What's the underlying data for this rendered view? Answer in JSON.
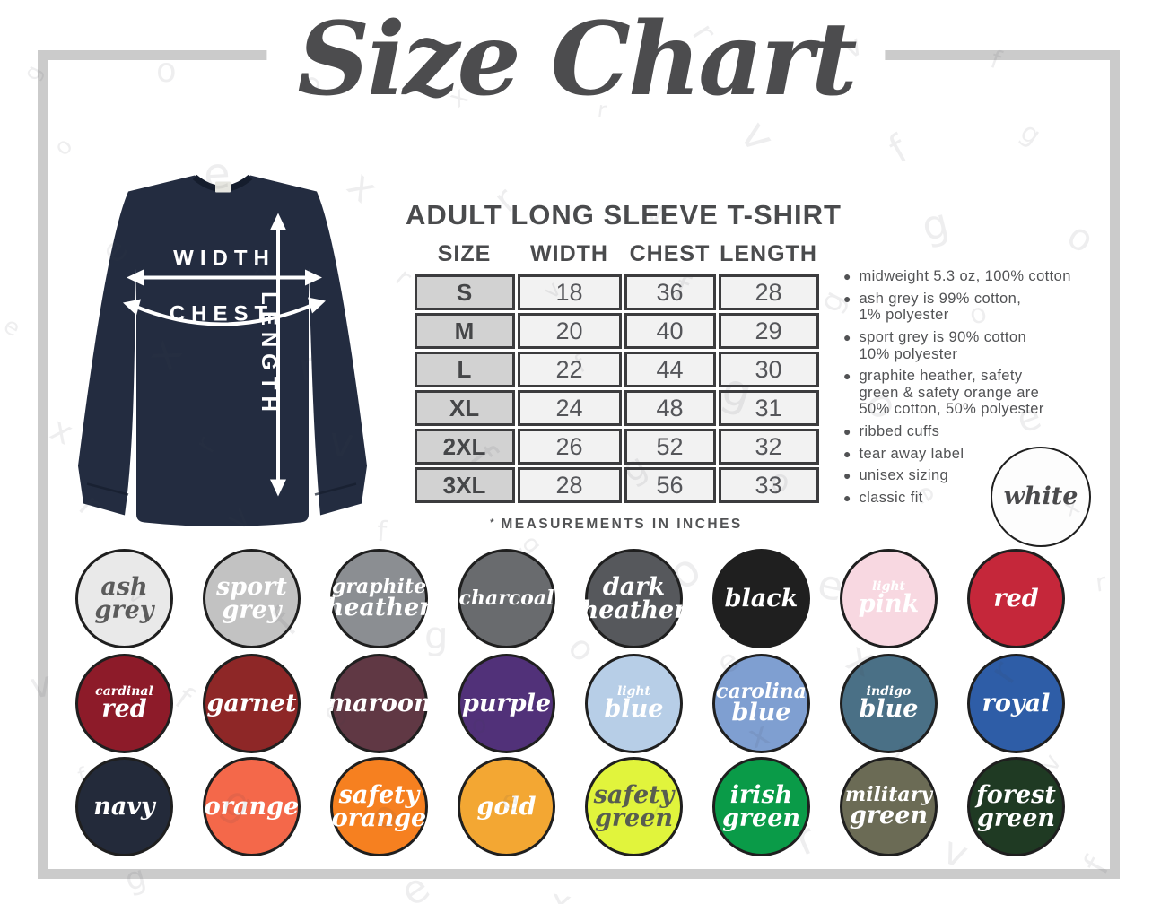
{
  "title": "Size Chart",
  "table": {
    "heading": "ADULT LONG SLEEVE T-SHIRT",
    "columns": [
      "SIZE",
      "WIDTH",
      "CHEST",
      "LENGTH"
    ],
    "rows": [
      {
        "size": "S",
        "width": "18",
        "chest": "36",
        "length": "28"
      },
      {
        "size": "M",
        "width": "20",
        "chest": "40",
        "length": "29"
      },
      {
        "size": "L",
        "width": "22",
        "chest": "44",
        "length": "30"
      },
      {
        "size": "XL",
        "width": "24",
        "chest": "48",
        "length": "31"
      },
      {
        "size": "2XL",
        "width": "26",
        "chest": "52",
        "length": "32"
      },
      {
        "size": "3XL",
        "width": "28",
        "chest": "56",
        "length": "33"
      }
    ],
    "footnote_mark": "*",
    "footnote_text": "MEASUREMENTS IN INCHES"
  },
  "shirt_diagram": {
    "width_label": "WIDTH",
    "chest_label": "CHEST",
    "length_label": "LENGTH",
    "shirt_color": "#232c40"
  },
  "features": [
    "midweight 5.3 oz, 100% cotton",
    "ash grey is 99% cotton,\n1% polyester",
    "sport grey is 90% cotton\n10% polyester",
    "graphite heather, safety\ngreen & safety orange are\n50% cotton, 50% polyester",
    "ribbed cuffs",
    "tear away label",
    "unisex sizing",
    "classic fit"
  ],
  "swatches": {
    "standalone": {
      "name": "white",
      "bg": "#fdfdfd",
      "fg": "#4a4a4c",
      "lines": [
        {
          "text": "white",
          "size": "lg"
        }
      ]
    },
    "rows": [
      [
        {
          "name": "ash grey",
          "bg": "#e9e9e9",
          "fg": "#5b5b5b",
          "lines": [
            {
              "text": "ash",
              "size": "lg"
            },
            {
              "text": "grey",
              "size": "lg"
            }
          ]
        },
        {
          "name": "sport grey",
          "bg": "#c2c2c2",
          "fg": "#ffffff",
          "lines": [
            {
              "text": "sport",
              "size": "lg"
            },
            {
              "text": "grey",
              "size": "lg"
            }
          ]
        },
        {
          "name": "graphite heather",
          "bg": "#8b8e92",
          "fg": "#ffffff",
          "lines": [
            {
              "text": "graphite",
              "size": "lg"
            },
            {
              "text": "heather",
              "size": "lg"
            }
          ]
        },
        {
          "name": "charcoal",
          "bg": "#696b6e",
          "fg": "#ffffff",
          "lines": [
            {
              "text": "charcoal",
              "size": "lg"
            }
          ]
        },
        {
          "name": "dark heather",
          "bg": "#56585c",
          "fg": "#ffffff",
          "lines": [
            {
              "text": "dark",
              "size": "lg"
            },
            {
              "text": "heather",
              "size": "lg"
            }
          ]
        },
        {
          "name": "black",
          "bg": "#1f1f1f",
          "fg": "#ffffff",
          "lines": [
            {
              "text": "black",
              "size": "lg"
            }
          ]
        },
        {
          "name": "light pink",
          "bg": "#f8d8e1",
          "fg": "#ffffff",
          "lines": [
            {
              "text": "light",
              "size": "sm"
            },
            {
              "text": "pink",
              "size": "lg"
            }
          ]
        },
        {
          "name": "red",
          "bg": "#c5273a",
          "fg": "#ffffff",
          "lines": [
            {
              "text": "red",
              "size": "lg"
            }
          ]
        }
      ],
      [
        {
          "name": "cardinal red",
          "bg": "#8d1b29",
          "fg": "#ffffff",
          "lines": [
            {
              "text": "cardinal",
              "size": "sm"
            },
            {
              "text": "red",
              "size": "lg"
            }
          ]
        },
        {
          "name": "garnet",
          "bg": "#8e2727",
          "fg": "#ffffff",
          "lines": [
            {
              "text": "garnet",
              "size": "lg"
            }
          ]
        },
        {
          "name": "maroon",
          "bg": "#603844",
          "fg": "#ffffff",
          "lines": [
            {
              "text": "maroon",
              "size": "lg"
            }
          ]
        },
        {
          "name": "purple",
          "bg": "#513179",
          "fg": "#ffffff",
          "lines": [
            {
              "text": "purple",
              "size": "lg"
            }
          ]
        },
        {
          "name": "light blue",
          "bg": "#b7cee7",
          "fg": "#ffffff",
          "lines": [
            {
              "text": "light",
              "size": "sm"
            },
            {
              "text": "blue",
              "size": "lg"
            }
          ]
        },
        {
          "name": "carolina blue",
          "bg": "#7f9fd1",
          "fg": "#ffffff",
          "lines": [
            {
              "text": "carolina",
              "size": "lg"
            },
            {
              "text": "blue",
              "size": "lg"
            }
          ]
        },
        {
          "name": "indigo blue",
          "bg": "#4a7086",
          "fg": "#ffffff",
          "lines": [
            {
              "text": "indigo",
              "size": "sm"
            },
            {
              "text": "blue",
              "size": "lg"
            }
          ]
        },
        {
          "name": "royal",
          "bg": "#2e5da7",
          "fg": "#ffffff",
          "lines": [
            {
              "text": "royal",
              "size": "lg"
            }
          ]
        }
      ],
      [
        {
          "name": "navy",
          "bg": "#232a3a",
          "fg": "#ffffff",
          "lines": [
            {
              "text": "navy",
              "size": "lg"
            }
          ]
        },
        {
          "name": "orange",
          "bg": "#f4684a",
          "fg": "#ffffff",
          "lines": [
            {
              "text": "orange",
              "size": "lg"
            }
          ]
        },
        {
          "name": "safety orange",
          "bg": "#f68020",
          "fg": "#ffffff",
          "lines": [
            {
              "text": "safety",
              "size": "lg"
            },
            {
              "text": "orange",
              "size": "lg"
            }
          ]
        },
        {
          "name": "gold",
          "bg": "#f3a733",
          "fg": "#ffffff",
          "lines": [
            {
              "text": "gold",
              "size": "lg"
            }
          ]
        },
        {
          "name": "safety green",
          "bg": "#e1f43c",
          "fg": "#585d50",
          "lines": [
            {
              "text": "safety",
              "size": "lg"
            },
            {
              "text": "green",
              "size": "lg"
            }
          ]
        },
        {
          "name": "irish green",
          "bg": "#0a9b48",
          "fg": "#ffffff",
          "lines": [
            {
              "text": "irish",
              "size": "lg"
            },
            {
              "text": "green",
              "size": "lg"
            }
          ]
        },
        {
          "name": "military green",
          "bg": "#6b6b55",
          "fg": "#ffffff",
          "lines": [
            {
              "text": "military",
              "size": "lg"
            },
            {
              "text": "green",
              "size": "lg"
            }
          ]
        },
        {
          "name": "forest green",
          "bg": "#1f3a23",
          "fg": "#ffffff",
          "lines": [
            {
              "text": "forest",
              "size": "lg"
            },
            {
              "text": "green",
              "size": "lg"
            }
          ]
        }
      ]
    ]
  },
  "watermark": {
    "letters": [
      "g",
      "r",
      "o",
      "v",
      "e",
      "f",
      "x"
    ]
  }
}
